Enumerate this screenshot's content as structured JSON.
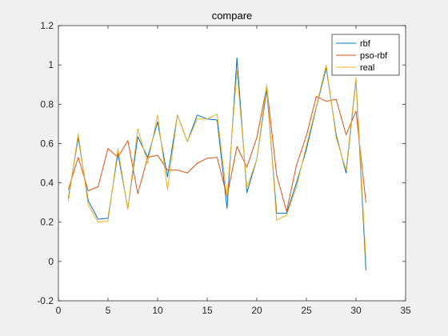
{
  "chart_data": {
    "type": "line",
    "title": "compare",
    "xlabel": "",
    "ylabel": "",
    "xlim": [
      0,
      35
    ],
    "ylim": [
      -0.2,
      1.2
    ],
    "xticks": [
      0,
      5,
      10,
      15,
      20,
      25,
      30,
      35
    ],
    "yticks": [
      -0.2,
      0,
      0.2,
      0.4,
      0.6,
      0.8,
      1,
      1.2
    ],
    "xtick_labels": [
      "0",
      "5",
      "10",
      "15",
      "20",
      "25",
      "30",
      "35"
    ],
    "ytick_labels": [
      "-0.2",
      "0",
      "0.2",
      "0.4",
      "0.6",
      "0.8",
      "1",
      "1.2"
    ],
    "grid": false,
    "legend_position": "top-right",
    "x": [
      1,
      2,
      3,
      4,
      5,
      6,
      7,
      8,
      9,
      10,
      11,
      12,
      13,
      14,
      15,
      16,
      17,
      18,
      19,
      20,
      21,
      22,
      23,
      24,
      25,
      26,
      27,
      28,
      29,
      30,
      31
    ],
    "series": [
      {
        "name": "rbf",
        "color": "#0072BD",
        "values": [
          0.32,
          0.63,
          0.31,
          0.215,
          0.22,
          0.55,
          0.27,
          0.635,
          0.53,
          0.71,
          0.43,
          0.745,
          0.61,
          0.745,
          0.725,
          0.72,
          0.27,
          1.035,
          0.35,
          0.52,
          0.875,
          0.245,
          0.245,
          0.4,
          0.57,
          0.785,
          0.985,
          0.645,
          0.45,
          0.925,
          -0.045
        ]
      },
      {
        "name": "pso-rbf",
        "color": "#D95319",
        "values": [
          0.365,
          0.53,
          0.36,
          0.38,
          0.575,
          0.53,
          0.615,
          0.345,
          0.53,
          0.54,
          0.465,
          0.465,
          0.45,
          0.5,
          0.525,
          0.53,
          0.33,
          0.585,
          0.48,
          0.63,
          0.89,
          0.44,
          0.255,
          0.49,
          0.64,
          0.84,
          0.815,
          0.825,
          0.645,
          0.765,
          0.3
        ]
      },
      {
        "name": "real",
        "color": "#EDB120",
        "values": [
          0.305,
          0.65,
          0.29,
          0.2,
          0.205,
          0.575,
          0.265,
          0.675,
          0.5,
          0.745,
          0.365,
          0.745,
          0.61,
          0.725,
          0.725,
          0.75,
          0.325,
          0.97,
          0.375,
          0.52,
          0.9,
          0.21,
          0.235,
          0.38,
          0.59,
          0.79,
          1.0,
          0.63,
          0.465,
          0.935,
          0.005
        ]
      }
    ]
  }
}
